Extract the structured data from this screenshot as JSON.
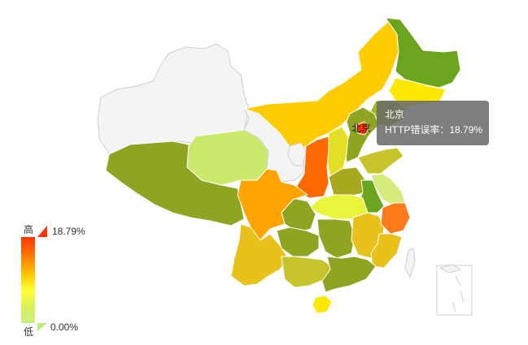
{
  "map": {
    "region_colors": {
      "xinjiang": "#f4f4f4",
      "tibet": "#8fa421",
      "qinghai": "#c9e86c",
      "gansu": "#f4f4f4",
      "inner_mongolia": "#ffcc00",
      "heilongjiang": "#6aa51d",
      "jilin": "#ffe800",
      "liaoning": "#a6b71d",
      "beijing": "#ff3300",
      "hebei": "#8fa421",
      "shanxi": "#e3df24",
      "shaanxi": "#ff6a00",
      "ningxia": "#f4f4f4",
      "sichuan": "#ffa400",
      "chongqing": "#8fa421",
      "yunnan": "#e8c11a",
      "guizhou": "#8fa421",
      "guangxi": "#c7c32b",
      "guangdong": "#8fa421",
      "hainan": "#ffe800",
      "hunan": "#8fa421",
      "hubei": "#e8f53a",
      "henan": "#a6a91d",
      "shandong": "#c7c32b",
      "jiangsu": "#d3ec7b",
      "anhui": "#6aa51d",
      "zhejiang": "#ff7a1a",
      "jiangxi": "#e8c11a",
      "fujian": "#e8c11a",
      "taiwan": "#f4f4f4",
      "south_sea_inset": "#f4f4f4"
    }
  },
  "city_label": "北京",
  "tooltip": {
    "title": "北京",
    "metric_label": "HTTP错误率：",
    "value": "18.79%"
  },
  "legend": {
    "high_label": "高",
    "low_label": "低",
    "max_value": "18.79%",
    "min_value": "0.00%"
  }
}
